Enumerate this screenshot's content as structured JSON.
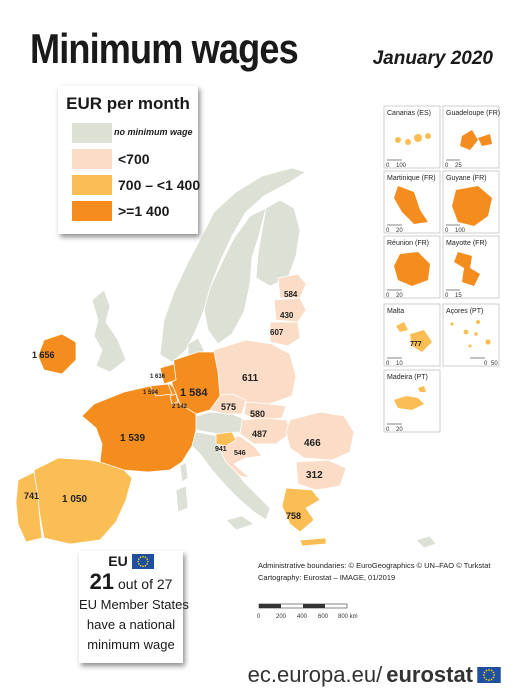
{
  "title": "Minimum wages",
  "date": "January 2020",
  "legend": {
    "title": "EUR per month",
    "items": [
      {
        "label": "no minimum wage",
        "color": "#dde0d5"
      },
      {
        "label": "<700",
        "color": "#fbdcc6"
      },
      {
        "label": "700 – <1 400",
        "color": "#fbbe55"
      },
      {
        "label": ">=1 400",
        "color": "#f58c1e"
      }
    ]
  },
  "countries": [
    {
      "country": "Ireland",
      "value": "1 656",
      "class": ">=1 400"
    },
    {
      "country": "Netherlands",
      "value": "1 636",
      "class": ">=1 400"
    },
    {
      "country": "Belgium",
      "value": "1 594",
      "class": ">=1 400"
    },
    {
      "country": "Luxembourg",
      "value": "2 142",
      "class": ">=1 400"
    },
    {
      "country": "Germany",
      "value": "1 584",
      "class": ">=1 400"
    },
    {
      "country": "France",
      "value": "1 539",
      "class": ">=1 400"
    },
    {
      "country": "Spain",
      "value": "1 050",
      "class": "700 – <1 400"
    },
    {
      "country": "Portugal",
      "value": "741",
      "class": "700 – <1 400"
    },
    {
      "country": "Slovenia",
      "value": "941",
      "class": "700 – <1 400"
    },
    {
      "country": "Malta",
      "value": "777",
      "class": "700 – <1 400"
    },
    {
      "country": "Greece",
      "value": "758",
      "class": "700 – <1 400"
    },
    {
      "country": "Estonia",
      "value": "584",
      "class": "<700"
    },
    {
      "country": "Latvia",
      "value": "430",
      "class": "<700"
    },
    {
      "country": "Lithuania",
      "value": "607",
      "class": "<700"
    },
    {
      "country": "Poland",
      "value": "611",
      "class": "<700"
    },
    {
      "country": "Czechia",
      "value": "575",
      "class": "<700"
    },
    {
      "country": "Slovakia",
      "value": "580",
      "class": "<700"
    },
    {
      "country": "Hungary",
      "value": "487",
      "class": "<700"
    },
    {
      "country": "Croatia",
      "value": "546",
      "class": "<700"
    },
    {
      "country": "Romania",
      "value": "466",
      "class": "<700"
    },
    {
      "country": "Bulgaria",
      "value": "312",
      "class": "<700"
    }
  ],
  "insets": [
    {
      "name": "Canarias (ES)",
      "scale": [
        "0",
        "100"
      ]
    },
    {
      "name": "Guadeloupe (FR)",
      "scale": [
        "0",
        "25"
      ]
    },
    {
      "name": "Martinique (FR)",
      "scale": [
        "0",
        "20"
      ]
    },
    {
      "name": "Guyane (FR)",
      "scale": [
        "0",
        "100"
      ]
    },
    {
      "name": "Réunion (FR)",
      "scale": [
        "0",
        "20"
      ]
    },
    {
      "name": "Mayotte (FR)",
      "scale": [
        "0",
        "15"
      ]
    },
    {
      "name": "Malta",
      "scale": [
        "0",
        "10"
      ]
    },
    {
      "name": "Açores (PT)",
      "scale": [
        "0",
        "50"
      ]
    },
    {
      "name": "Madeira (PT)",
      "scale": [
        "0",
        "20"
      ]
    }
  ],
  "member_states": {
    "eu_label": "EU",
    "count": "21",
    "of_text": "out of 27",
    "line1": "EU Member States",
    "line2": "have a national",
    "line3": "minimum wage"
  },
  "credits": {
    "boundaries": "Administrative boundaries: © EuroGeographics © UN–FAO © Turkstat",
    "cartography": "Cartography: Eurostat – IMAGE, 01/2019"
  },
  "scalebar": {
    "ticks": [
      "0",
      "200",
      "400",
      "600",
      "800 km"
    ]
  },
  "footer": {
    "domain": "ec.europa.eu/",
    "brand": "eurostat"
  }
}
